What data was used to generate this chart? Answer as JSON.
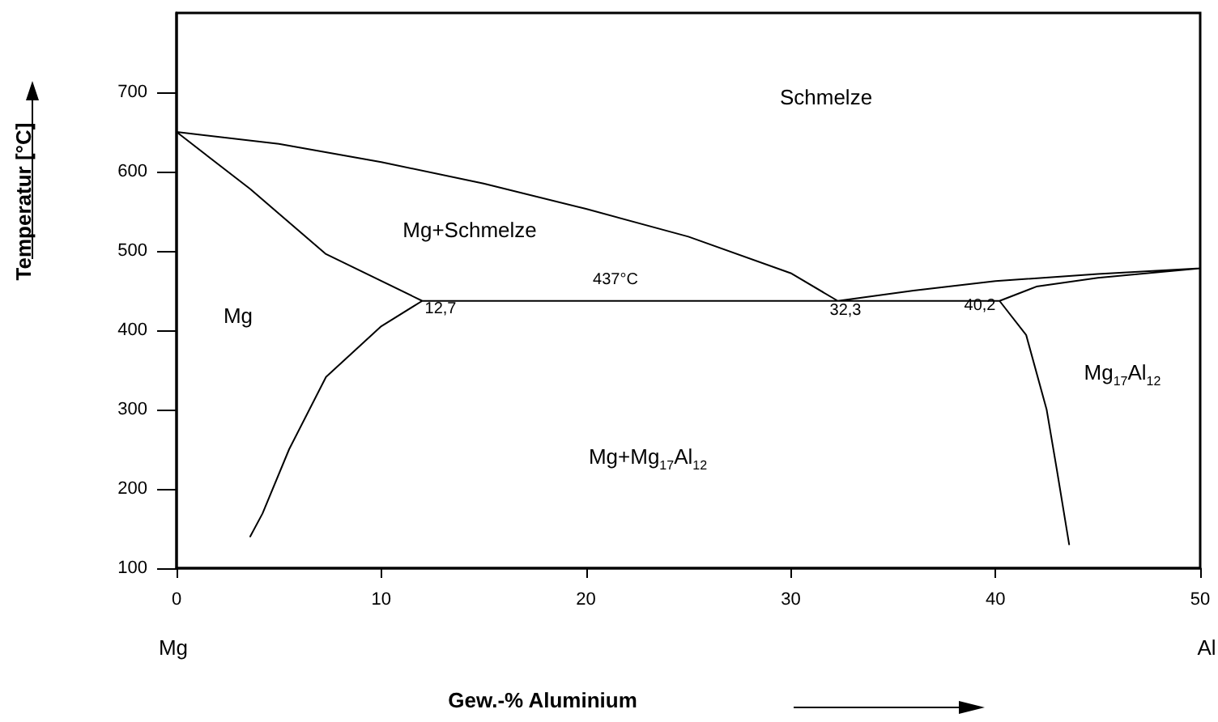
{
  "chart_data": {
    "type": "line",
    "xlabel": "Gew.-% Aluminium",
    "ylabel": "Temperatur [°C]",
    "xlim": [
      0,
      50
    ],
    "xticks": [
      0,
      10,
      20,
      30,
      40,
      50
    ],
    "ylim": [
      100,
      800
    ],
    "yticks": [
      100,
      200,
      300,
      400,
      500,
      600,
      700
    ],
    "grid": false,
    "marker": "none",
    "line_style": "solid",
    "series": [
      {
        "color": "#000000",
        "x": [
          0,
          5,
          10,
          15,
          20,
          25,
          30,
          32.3,
          36,
          40,
          45,
          50,
          null,
          0,
          3.6,
          7.3,
          12,
          40.2,
          42,
          45,
          50,
          null,
          12,
          10,
          7.3,
          5.5,
          4.2,
          3.6,
          null,
          40.2,
          41.5,
          42.5,
          43,
          43.6
        ],
        "values": [
          650,
          635,
          612,
          585,
          553,
          518,
          472,
          437,
          450,
          462,
          471,
          478,
          null,
          650,
          578,
          496,
          437,
          437,
          455,
          466,
          478,
          null,
          437,
          405,
          341,
          250,
          169,
          140,
          null,
          437,
          394,
          300,
          224,
          130
        ]
      }
    ],
    "annotations": [
      "Schmelze",
      "Mg+Schmelze",
      "Mg",
      "Mg+Mg$_{17}$Al$_{12}$",
      "Mg$_{17}$Al$_{12}$",
      "437°C",
      "12,7",
      "32,3",
      "40,2",
      "Mg",
      "Al"
    ]
  }
}
